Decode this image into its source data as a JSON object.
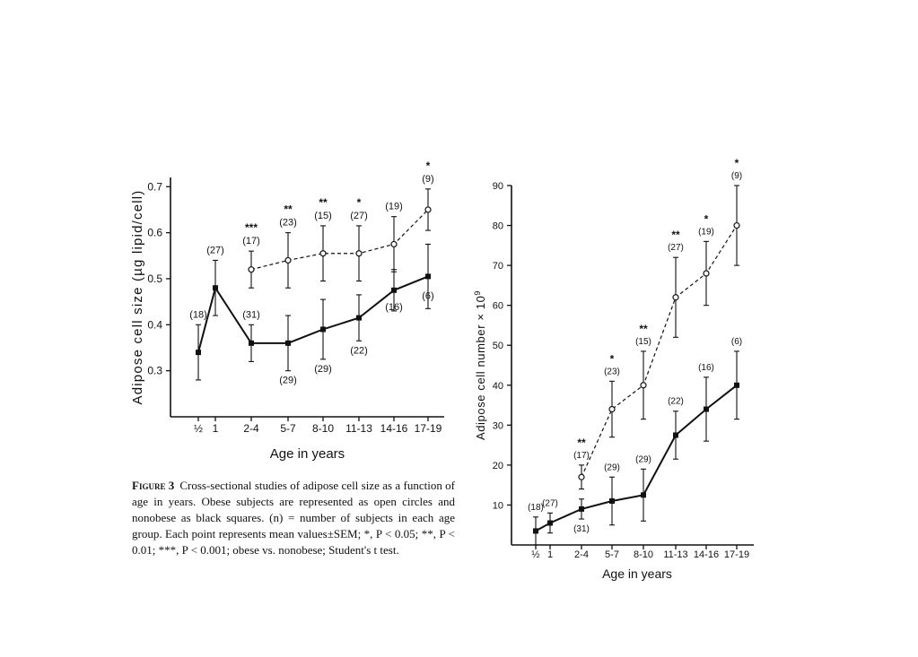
{
  "chart_data": [
    {
      "type": "line",
      "title": "",
      "xlabel": "Age in years",
      "ylabel": "Adipose cell size (µg lipid/cell)",
      "categories": [
        "½",
        "1",
        "2-4",
        "5-7",
        "8-10",
        "11-13",
        "14-16",
        "17-19"
      ],
      "yticks": [
        "0.3",
        "0.4",
        "0.5",
        "0.6",
        "0.7"
      ],
      "ylim": [
        0.2,
        0.72
      ],
      "series": [
        {
          "style": "dashed, open circles (obese)",
          "values": [
            null,
            null,
            0.52,
            0.54,
            0.555,
            0.555,
            0.575,
            0.65
          ],
          "err": [
            null,
            null,
            0.04,
            0.06,
            0.06,
            0.06,
            0.06,
            0.045
          ],
          "n_labels": [
            "",
            "",
            "(17)",
            "(23)",
            "(15)",
            "(27)",
            "(19)",
            "(9)"
          ],
          "sig": [
            "",
            "",
            "***",
            "**",
            "**",
            "*",
            "",
            "*"
          ]
        },
        {
          "style": "solid, black squares (nonobese)",
          "values": [
            0.34,
            0.48,
            0.36,
            0.36,
            0.39,
            0.415,
            0.475,
            0.505
          ],
          "err": [
            0.06,
            0.06,
            0.04,
            0.06,
            0.065,
            0.05,
            0.045,
            0.07
          ],
          "n_labels": [
            "(18)",
            "(27)",
            "(31)",
            "(29)",
            "(29)",
            "(22)",
            "(16)",
            "(6)"
          ]
        }
      ],
      "grid": false
    },
    {
      "type": "line",
      "title": "",
      "xlabel": "Age in years",
      "ylabel": "Adipose cell number × 10",
      "ylabel_exp": "9",
      "categories": [
        "½",
        "1",
        "2-4",
        "5-7",
        "8-10",
        "11-13",
        "14-16",
        "17-19"
      ],
      "yticks": [
        "10",
        "20",
        "30",
        "40",
        "50",
        "60",
        "70",
        "80",
        "90"
      ],
      "ylim": [
        0,
        90
      ],
      "series": [
        {
          "style": "dashed, open circles (obese)",
          "values": [
            null,
            null,
            17,
            34,
            40,
            62,
            68,
            80
          ],
          "err": [
            null,
            null,
            3,
            7,
            8.5,
            10,
            8,
            10
          ],
          "n_labels": [
            "",
            "",
            "(17)",
            "(23)",
            "(15)",
            "(27)",
            "(19)",
            "(9)"
          ],
          "sig": [
            "",
            "",
            "**",
            "*",
            "**",
            "**",
            "*",
            "*"
          ]
        },
        {
          "style": "solid, black squares (nonobese)",
          "values": [
            3.5,
            5.5,
            9,
            11,
            12.5,
            27.5,
            34,
            40
          ],
          "err": [
            3.5,
            2.5,
            2.5,
            6,
            6.5,
            6,
            8,
            8.5
          ],
          "n_labels": [
            "(18)",
            "(27)",
            "(31)",
            "(29)",
            "(29)",
            "(22)",
            "(16)",
            "(6)"
          ]
        }
      ],
      "grid": false
    }
  ],
  "caption": {
    "lead": "Figure 3",
    "text": "Cross-sectional studies of adipose cell size as a function of age in years. Obese subjects are represented as open circles and nonobese as black squares. (n) = number of subjects in each age group. Each point represents mean values±SEM; *, P < 0.05; **, P < 0.01; ***, P < 0.001; obese vs. nonobese; Student's t test."
  }
}
